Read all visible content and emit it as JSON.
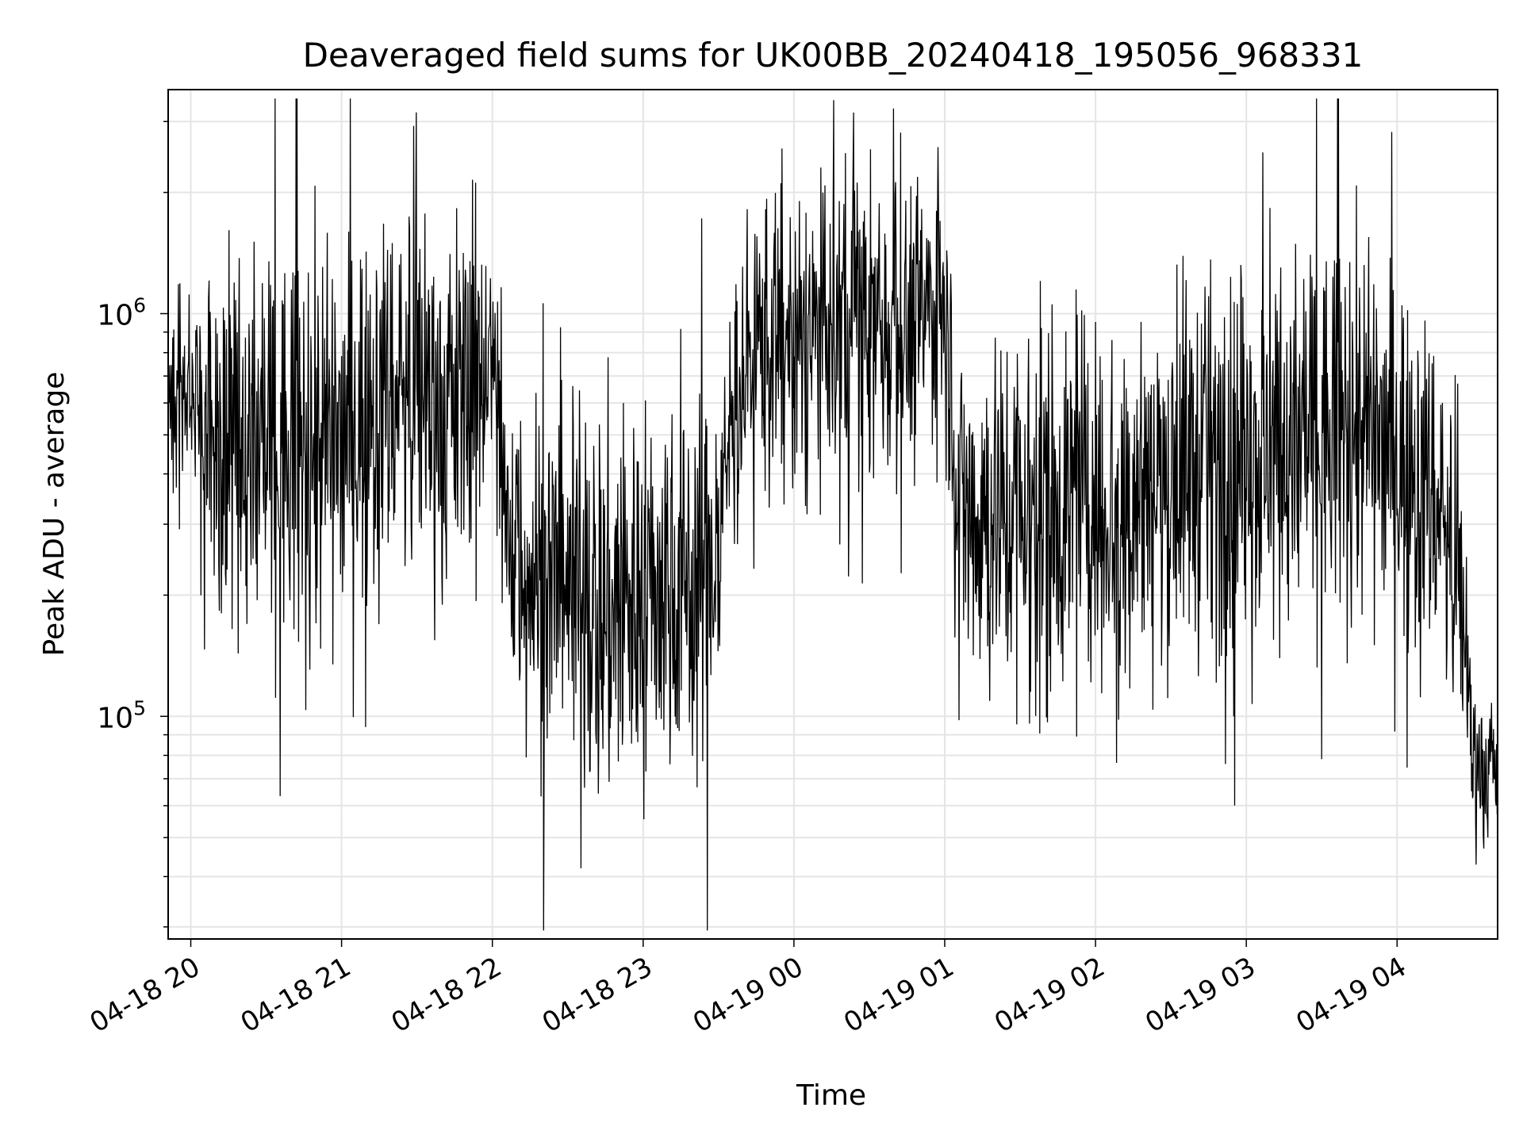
{
  "chart_data": {
    "type": "line",
    "title": "Deaveraged field sums for UK00BB_20240418_195056_968331",
    "xlabel": "Time",
    "ylabel": "Peak ADU - average",
    "yscale": "log",
    "ylim": [
      28000,
      3600000
    ],
    "xlim": [
      "2024-04-18 19:51",
      "2024-04-19 04:40"
    ],
    "grid": true,
    "line_color": "#000000",
    "grid_color": "#e5e5e5",
    "x_ticks": [
      {
        "value": "2024-04-18 20:00",
        "label": "04-18 20"
      },
      {
        "value": "2024-04-18 21:00",
        "label": "04-18 21"
      },
      {
        "value": "2024-04-18 22:00",
        "label": "04-18 22"
      },
      {
        "value": "2024-04-18 23:00",
        "label": "04-18 23"
      },
      {
        "value": "2024-04-19 00:00",
        "label": "04-19 00"
      },
      {
        "value": "2024-04-19 01:00",
        "label": "04-19 01"
      },
      {
        "value": "2024-04-19 02:00",
        "label": "04-19 02"
      },
      {
        "value": "2024-04-19 03:00",
        "label": "04-19 03"
      },
      {
        "value": "2024-04-19 04:00",
        "label": "04-19 04"
      }
    ],
    "y_ticks": [
      {
        "value": 100000,
        "base": "10",
        "exp": "5"
      },
      {
        "value": 1000000,
        "base": "10",
        "exp": "6"
      }
    ],
    "envelope": {
      "x": [
        "2024-04-18 19:51",
        "2024-04-18 20:05",
        "2024-04-18 20:15",
        "2024-04-18 20:30",
        "2024-04-18 20:45",
        "2024-04-18 21:00",
        "2024-04-18 21:15",
        "2024-04-18 21:30",
        "2024-04-18 21:45",
        "2024-04-18 22:00",
        "2024-04-18 22:05",
        "2024-04-18 22:15",
        "2024-04-18 22:30",
        "2024-04-18 22:45",
        "2024-04-18 23:00",
        "2024-04-18 23:15",
        "2024-04-18 23:30",
        "2024-04-18 23:35",
        "2024-04-18 23:45",
        "2024-04-19 00:00",
        "2024-04-19 00:15",
        "2024-04-19 00:30",
        "2024-04-19 00:45",
        "2024-04-19 01:00",
        "2024-04-19 01:05",
        "2024-04-19 01:15",
        "2024-04-19 01:30",
        "2024-04-19 01:45",
        "2024-04-19 02:00",
        "2024-04-19 02:15",
        "2024-04-19 02:30",
        "2024-04-19 02:45",
        "2024-04-19 03:00",
        "2024-04-19 03:15",
        "2024-04-19 03:30",
        "2024-04-19 03:45",
        "2024-04-19 04:00",
        "2024-04-19 04:15",
        "2024-04-19 04:25",
        "2024-04-19 04:30",
        "2024-04-19 04:40"
      ],
      "median": [
        600000,
        580000,
        480000,
        430000,
        420000,
        480000,
        620000,
        650000,
        600000,
        750000,
        300000,
        230000,
        200000,
        180000,
        200000,
        220000,
        240000,
        550000,
        850000,
        800000,
        900000,
        950000,
        900000,
        1100000,
        350000,
        320000,
        330000,
        340000,
        330000,
        350000,
        400000,
        420000,
        430000,
        450000,
        480000,
        500000,
        450000,
        350000,
        200000,
        80000,
        75000
      ],
      "spread": [
        1.35,
        1.8,
        2.3,
        2.4,
        2.4,
        2.3,
        2.2,
        2.3,
        2.3,
        1.6,
        1.9,
        2.2,
        2.4,
        2.5,
        2.4,
        2.3,
        2.2,
        1.9,
        1.9,
        2.0,
        2.0,
        2.0,
        1.9,
        1.8,
        2.0,
        2.3,
        2.3,
        2.3,
        2.3,
        2.3,
        2.3,
        2.3,
        2.3,
        2.3,
        2.3,
        2.2,
        2.2,
        2.1,
        1.8,
        1.45,
        1.4
      ]
    }
  }
}
